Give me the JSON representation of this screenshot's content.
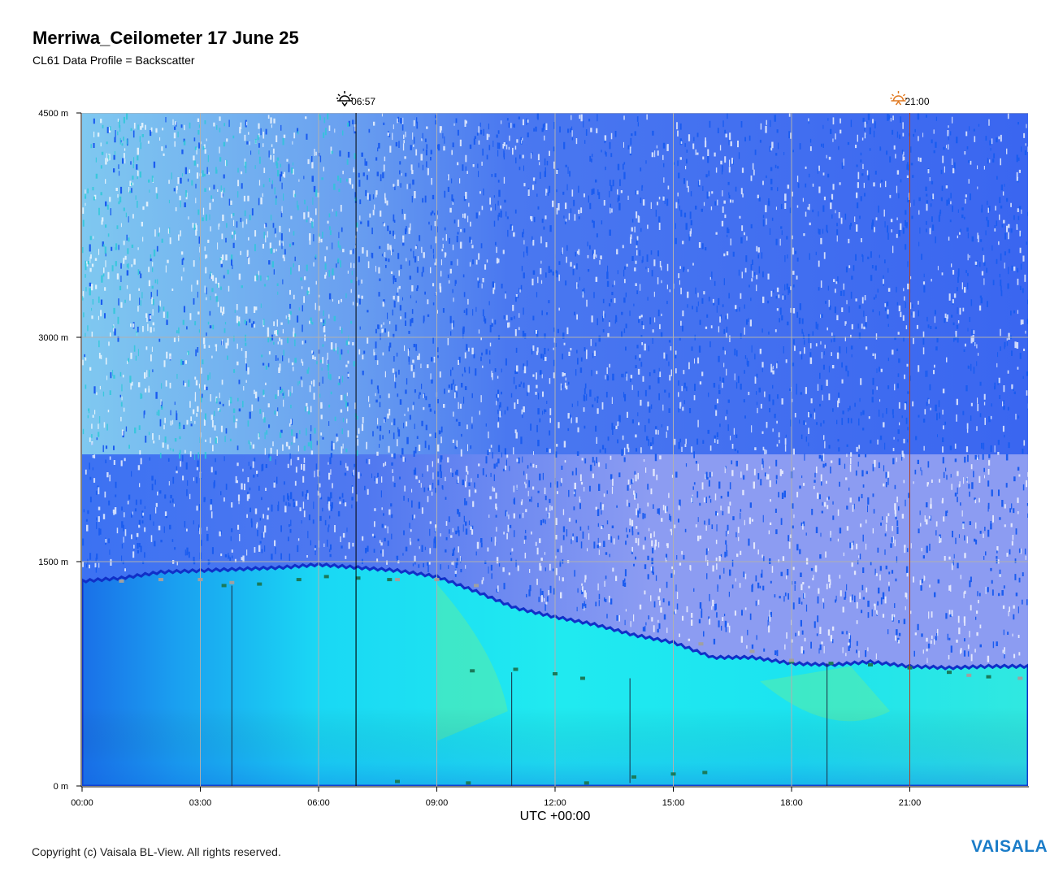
{
  "header": {
    "title": "Merriwa_Ceilometer 17 June 25",
    "subtitle": "CL61 Data Profile = Backscatter"
  },
  "footer": {
    "copyright": "Copyright (c) Vaisala BL-View. All rights reserved.",
    "logo": "VAISALA"
  },
  "colors": {
    "background_noise_blue": "#1a5cf0",
    "noise_cyan": "#2ac8d8",
    "lavender": "#8fa0f0",
    "cloud_cyan": "#1ae8f0",
    "cloud_green": "#5af0a8",
    "deep_blue": "#1060e0",
    "layer_green": "#1a7a5a",
    "layer_grey": "#a0a0a0",
    "sunrise_line": "#000000",
    "sunset_line": "#b04020",
    "logo": "#1a7cc8"
  },
  "chart_data": {
    "type": "heatmap",
    "variable": "Backscatter",
    "xlabel": "UTC +00:00",
    "ylabel": "",
    "xlim": [
      0,
      24
    ],
    "ylim": [
      0,
      4500
    ],
    "x_ticks": [
      {
        "value": 0,
        "label": "00:00"
      },
      {
        "value": 3,
        "label": "03:00"
      },
      {
        "value": 6,
        "label": "06:00"
      },
      {
        "value": 9,
        "label": "09:00"
      },
      {
        "value": 12,
        "label": "12:00"
      },
      {
        "value": 15,
        "label": "15:00"
      },
      {
        "value": 18,
        "label": "18:00"
      },
      {
        "value": 21,
        "label": "21:00"
      }
    ],
    "y_ticks": [
      {
        "value": 0,
        "label": "0 m"
      },
      {
        "value": 1500,
        "label": "1500 m"
      },
      {
        "value": 3000,
        "label": "3000 m"
      },
      {
        "value": 4500,
        "label": "4500 m"
      }
    ],
    "grid": true,
    "markers": [
      {
        "name": "sunrise",
        "time": 6.95,
        "label": "06:57",
        "icon": "sunrise-icon"
      },
      {
        "name": "sunset",
        "time": 21.0,
        "label": "21:00",
        "icon": "sunset-icon"
      }
    ],
    "boundary_layer_top": [
      [
        0.0,
        1370
      ],
      [
        1.0,
        1390
      ],
      [
        2.0,
        1430
      ],
      [
        3.0,
        1440
      ],
      [
        4.0,
        1450
      ],
      [
        5.0,
        1460
      ],
      [
        6.0,
        1480
      ],
      [
        7.0,
        1460
      ],
      [
        8.0,
        1440
      ],
      [
        9.0,
        1400
      ],
      [
        10.0,
        1300
      ],
      [
        11.0,
        1190
      ],
      [
        12.0,
        1130
      ],
      [
        13.0,
        1080
      ],
      [
        14.0,
        1010
      ],
      [
        15.0,
        960
      ],
      [
        16.0,
        860
      ],
      [
        17.0,
        860
      ],
      [
        18.0,
        820
      ],
      [
        19.0,
        810
      ],
      [
        20.0,
        830
      ],
      [
        21.0,
        800
      ],
      [
        22.0,
        790
      ],
      [
        23.0,
        800
      ],
      [
        24.0,
        800
      ]
    ],
    "cloud_layers": [
      {
        "name": "green",
        "points": [
          [
            3.6,
            1340
          ],
          [
            4.5,
            1350
          ],
          [
            5.5,
            1380
          ],
          [
            6.2,
            1400
          ],
          [
            7.0,
            1390
          ],
          [
            7.8,
            1380
          ],
          [
            9.9,
            770
          ],
          [
            11.0,
            780
          ],
          [
            12.0,
            750
          ],
          [
            12.7,
            720
          ],
          [
            8.0,
            30
          ],
          [
            9.8,
            20
          ],
          [
            12.8,
            20
          ],
          [
            14.0,
            60
          ],
          [
            15.0,
            80
          ],
          [
            15.8,
            90
          ],
          [
            18.0,
            830
          ],
          [
            19.0,
            820
          ],
          [
            20.0,
            810
          ],
          [
            21.0,
            790
          ],
          [
            22.0,
            760
          ],
          [
            23.0,
            730
          ]
        ]
      },
      {
        "name": "grey",
        "points": [
          [
            1.0,
            1370
          ],
          [
            2.0,
            1380
          ],
          [
            3.0,
            1380
          ],
          [
            3.8,
            1360
          ],
          [
            8.0,
            1380
          ],
          [
            9.0,
            1380
          ],
          [
            10.0,
            1340
          ],
          [
            15.7,
            950
          ],
          [
            17.0,
            900
          ],
          [
            18.0,
            840
          ],
          [
            22.5,
            740
          ],
          [
            23.8,
            720
          ]
        ]
      }
    ]
  }
}
